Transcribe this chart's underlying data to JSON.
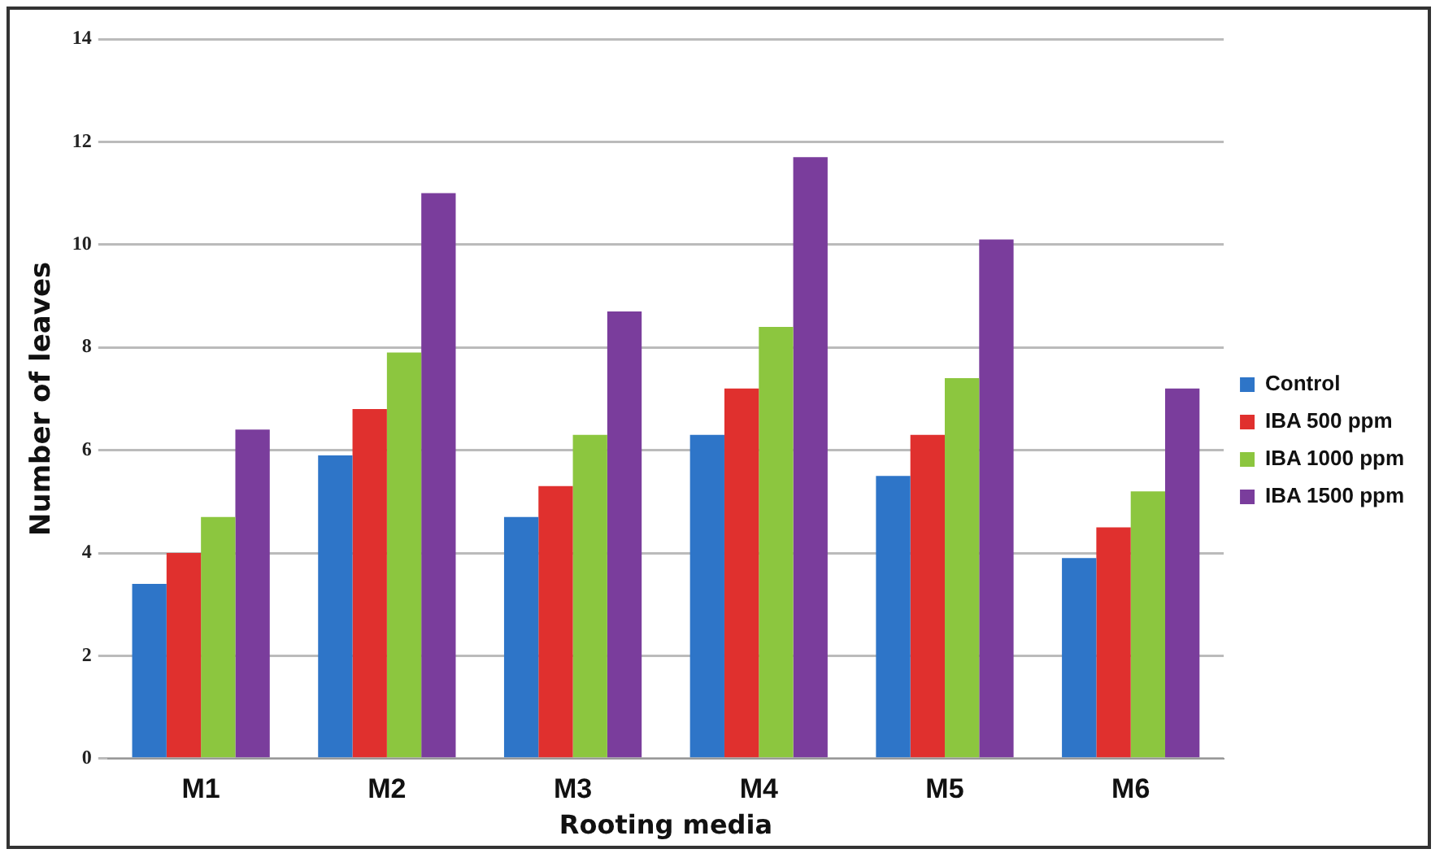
{
  "chart_data": {
    "type": "bar",
    "xlabel": "Rooting media",
    "ylabel": "Number of leaves",
    "categories": [
      "M1",
      "M2",
      "M3",
      "M4",
      "M5",
      "M6"
    ],
    "series": [
      {
        "name": "Control",
        "color": "#2e75c8",
        "values": [
          3.4,
          5.9,
          4.7,
          6.3,
          5.5,
          3.9
        ]
      },
      {
        "name": "IBA 500 ppm",
        "color": "#e0302e",
        "values": [
          4.0,
          6.8,
          5.3,
          7.2,
          6.3,
          4.5
        ]
      },
      {
        "name": "IBA 1000 ppm",
        "color": "#8cc63f",
        "values": [
          4.7,
          7.9,
          6.3,
          8.4,
          7.4,
          5.2
        ]
      },
      {
        "name": "IBA 1500 ppm",
        "color": "#7a3d9c",
        "values": [
          6.4,
          11.0,
          8.7,
          11.7,
          10.1,
          7.2
        ]
      }
    ],
    "ylim": [
      0,
      14
    ],
    "yticks": [
      0,
      2,
      4,
      6,
      8,
      10,
      12,
      14
    ],
    "grid": "y",
    "legend": "right"
  }
}
